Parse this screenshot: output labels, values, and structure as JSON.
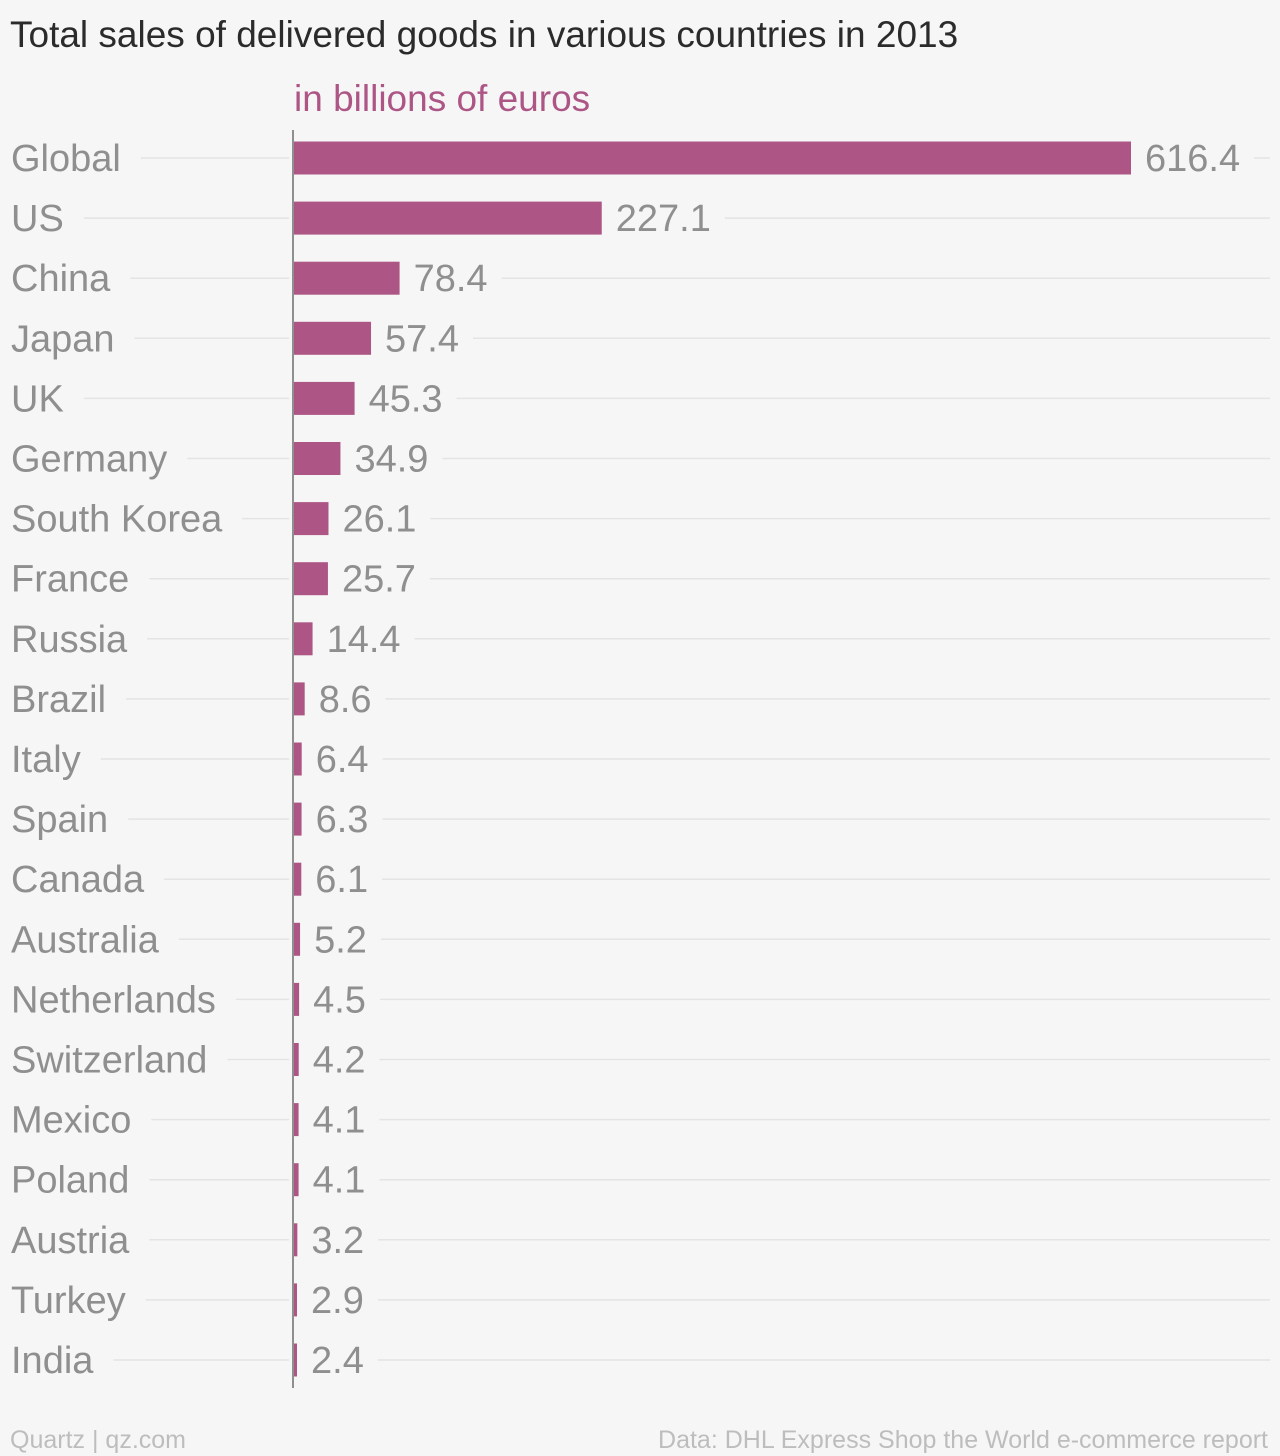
{
  "chart_data": {
    "type": "bar",
    "orientation": "horizontal",
    "title": "Total sales of delivered goods in various countries in 2013",
    "subtitle": "in billions of euros",
    "bar_color": "#ad5686",
    "subtitle_color": "#ad5686",
    "categories": [
      "Global",
      "US",
      "China",
      "Japan",
      "UK",
      "Germany",
      "South Korea",
      "France",
      "Russia",
      "Brazil",
      "Italy",
      "Spain",
      "Canada",
      "Australia",
      "Netherlands",
      "Switzerland",
      "Mexico",
      "Poland",
      "Austria",
      "Turkey",
      "India"
    ],
    "values": [
      616.4,
      227.1,
      78.4,
      57.4,
      45.3,
      34.9,
      26.1,
      25.7,
      14.4,
      8.6,
      6.4,
      6.3,
      6.1,
      5.2,
      4.5,
      4.2,
      4.1,
      4.1,
      3.2,
      2.9,
      2.4
    ],
    "value_labels": [
      "616.4",
      "227.1",
      "78.4",
      "57.4",
      "45.3",
      "34.9",
      "26.1",
      "25.7",
      "14.4",
      "8.6",
      "6.4",
      "6.3",
      "6.1",
      "5.2",
      "4.5",
      "4.2",
      "4.1",
      "4.1",
      "3.2",
      "2.9",
      "2.4"
    ],
    "xlim": [
      0,
      616.4
    ],
    "grid": true,
    "legend": false
  },
  "footer": {
    "source_left": "Quartz | qz.com",
    "source_right": "Data: DHL Express Shop the World e-commerce report"
  }
}
